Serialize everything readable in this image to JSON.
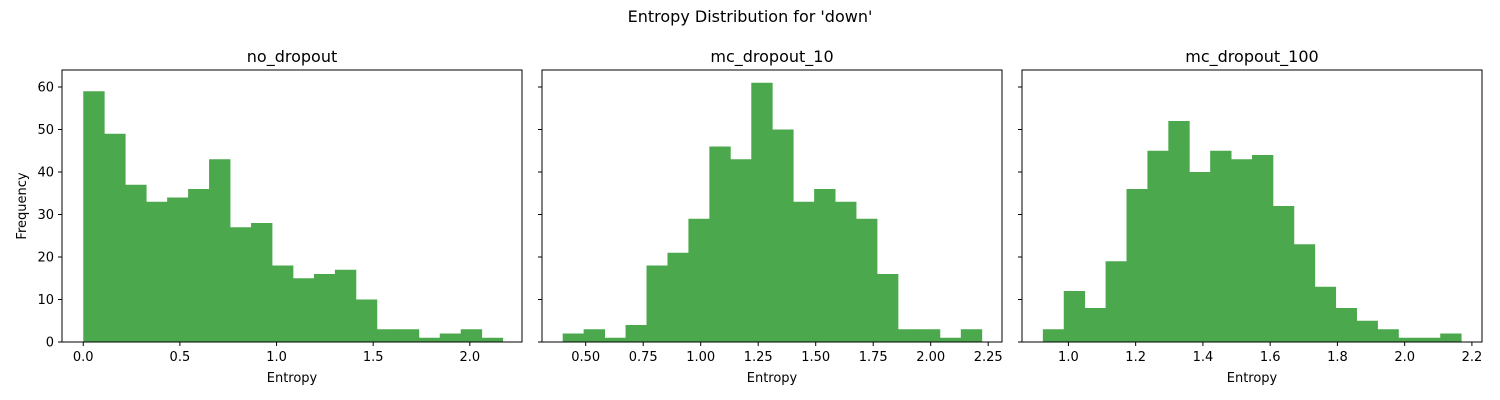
{
  "figure": {
    "title": "Entropy Distribution for 'down'"
  },
  "colors": {
    "bar": "#4ca84c"
  },
  "chart_data": [
    {
      "type": "bar",
      "subtype": "histogram",
      "title": "no_dropout",
      "xlabel": "Entropy",
      "ylabel": "Frequency",
      "xlim": [
        -0.11,
        2.27
      ],
      "ylim": [
        0,
        64
      ],
      "xticks": [
        0.0,
        0.5,
        1.0,
        1.5,
        2.0
      ],
      "xtick_labels": [
        "0.0",
        "0.5",
        "1.0",
        "1.5",
        "2.0"
      ],
      "yticks": [
        0,
        10,
        20,
        30,
        40,
        50,
        60
      ],
      "ytick_labels": [
        "0",
        "10",
        "20",
        "30",
        "40",
        "50",
        "60"
      ],
      "bin_start": 0.0,
      "bin_width": 0.1085,
      "values": [
        59,
        49,
        37,
        33,
        34,
        36,
        43,
        27,
        28,
        18,
        15,
        16,
        17,
        10,
        3,
        3,
        1,
        2,
        3,
        1
      ]
    },
    {
      "type": "bar",
      "subtype": "histogram",
      "title": "mc_dropout_10",
      "xlabel": "Entropy",
      "ylabel": "",
      "xlim": [
        0.31,
        2.31
      ],
      "ylim": [
        0,
        64
      ],
      "xticks": [
        0.5,
        0.75,
        1.0,
        1.25,
        1.5,
        1.75,
        2.0,
        2.25
      ],
      "xtick_labels": [
        "0.50",
        "0.75",
        "1.00",
        "1.25",
        "1.50",
        "1.75",
        "2.00",
        "2.25"
      ],
      "yticks": [
        0,
        10,
        20,
        30,
        40,
        50,
        60
      ],
      "ytick_labels": [
        "",
        "",
        "",
        "",
        "",
        "",
        ""
      ],
      "bin_start": 0.4,
      "bin_width": 0.0911,
      "values": [
        2,
        3,
        1,
        4,
        18,
        21,
        29,
        46,
        43,
        61,
        50,
        33,
        36,
        33,
        29,
        16,
        3,
        3,
        1,
        3
      ]
    },
    {
      "type": "bar",
      "subtype": "histogram",
      "title": "mc_dropout_100",
      "xlabel": "Entropy",
      "ylabel": "",
      "xlim": [
        0.862,
        2.23
      ],
      "ylim": [
        0,
        64
      ],
      "xticks": [
        1.0,
        1.2,
        1.4,
        1.6,
        1.8,
        2.0,
        2.2
      ],
      "xtick_labels": [
        "1.0",
        "1.2",
        "1.4",
        "1.6",
        "1.8",
        "2.0",
        "2.2"
      ],
      "yticks": [
        0,
        10,
        20,
        30,
        40,
        50,
        60
      ],
      "ytick_labels": [
        "",
        "",
        "",
        "",
        "",
        "",
        ""
      ],
      "bin_start": 0.924,
      "bin_width": 0.0622,
      "values": [
        3,
        12,
        8,
        19,
        36,
        45,
        52,
        40,
        45,
        43,
        44,
        32,
        23,
        13,
        8,
        5,
        3,
        1,
        1,
        2
      ]
    }
  ]
}
